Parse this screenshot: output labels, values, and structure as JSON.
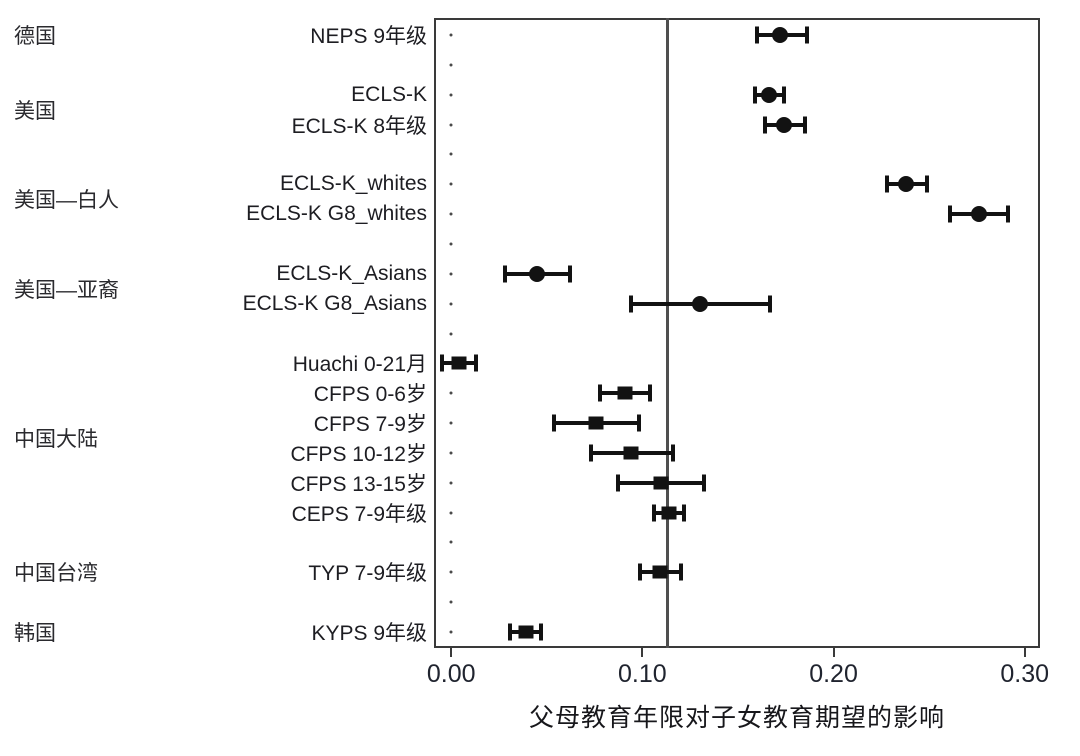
{
  "colors": {
    "marker": "#121212",
    "axis": "#3a3a3a",
    "reference_line": "#4f4f4f",
    "label_text": "#1d1d22",
    "tick_label_text": "#20242f"
  },
  "chart_data": {
    "type": "scatter",
    "subtype": "forest-plot",
    "xlabel": "父母教育年限对子女教育期望的影响",
    "xlim": [
      -0.009,
      0.308
    ],
    "x_tick_values": [
      0.0,
      0.1,
      0.2,
      0.3
    ],
    "x_tick_labels": [
      "0.00",
      "0.10",
      "0.20",
      "0.30"
    ],
    "reference_line": 0.113,
    "grid": false,
    "legend": "none",
    "n_slots": 21,
    "groups": [
      {
        "label": "德国",
        "center_slot": 1
      },
      {
        "label": "美国",
        "center_slot": 3.5
      },
      {
        "label": "美国—白人",
        "center_slot": 6.5
      },
      {
        "label": "美国—亚裔",
        "center_slot": 9.5
      },
      {
        "label": "中国大陆",
        "center_slot": 14.5
      },
      {
        "label": "中国台湾",
        "center_slot": 19
      },
      {
        "label": "韩国",
        "center_slot": 21
      }
    ],
    "rows": [
      {
        "slot": 1,
        "group": "德国",
        "label": "NEPS 9年级",
        "marker": "circle",
        "est": 0.172,
        "lo": 0.16,
        "hi": 0.186
      },
      {
        "slot": 3,
        "group": "美国",
        "label": "ECLS-K",
        "marker": "circle",
        "est": 0.166,
        "lo": 0.159,
        "hi": 0.174
      },
      {
        "slot": 4,
        "group": "美国",
        "label": "ECLS-K 8年级",
        "marker": "circle",
        "est": 0.174,
        "lo": 0.164,
        "hi": 0.185
      },
      {
        "slot": 6,
        "group": "美国—白人",
        "label": "ECLS-K_whites",
        "marker": "circle",
        "est": 0.238,
        "lo": 0.228,
        "hi": 0.249
      },
      {
        "slot": 7,
        "group": "美国—白人",
        "label": "ECLS-K G8_whites",
        "marker": "circle",
        "est": 0.276,
        "lo": 0.261,
        "hi": 0.291
      },
      {
        "slot": 9,
        "group": "美国—亚裔",
        "label": "ECLS-K_Asians",
        "marker": "circle",
        "est": 0.045,
        "lo": 0.028,
        "hi": 0.062
      },
      {
        "slot": 10,
        "group": "美国—亚裔",
        "label": "ECLS-K G8_Asians",
        "marker": "circle",
        "est": 0.13,
        "lo": 0.094,
        "hi": 0.167
      },
      {
        "slot": 12,
        "group": "中国大陆",
        "label": "Huachi 0-21月",
        "marker": "square",
        "est": 0.004,
        "lo": -0.005,
        "hi": 0.013
      },
      {
        "slot": 13,
        "group": "中国大陆",
        "label": "CFPS 0-6岁",
        "marker": "square",
        "est": 0.091,
        "lo": 0.078,
        "hi": 0.104
      },
      {
        "slot": 14,
        "group": "中国大陆",
        "label": "CFPS 7-9岁",
        "marker": "square",
        "est": 0.076,
        "lo": 0.054,
        "hi": 0.098
      },
      {
        "slot": 15,
        "group": "中国大陆",
        "label": "CFPS 10-12岁",
        "marker": "square",
        "est": 0.094,
        "lo": 0.073,
        "hi": 0.116
      },
      {
        "slot": 16,
        "group": "中国大陆",
        "label": "CFPS 13-15岁",
        "marker": "square",
        "est": 0.11,
        "lo": 0.087,
        "hi": 0.132
      },
      {
        "slot": 17,
        "group": "中国大陆",
        "label": "CEPS 7-9年级",
        "marker": "square",
        "est": 0.114,
        "lo": 0.106,
        "hi": 0.122
      },
      {
        "slot": 19,
        "group": "中国台湾",
        "label": "TYP 7-9年级",
        "marker": "square",
        "est": 0.109,
        "lo": 0.099,
        "hi": 0.12
      },
      {
        "slot": 21,
        "group": "韩国",
        "label": "KYPS 9年级",
        "marker": "square",
        "est": 0.039,
        "lo": 0.031,
        "hi": 0.047
      }
    ]
  }
}
